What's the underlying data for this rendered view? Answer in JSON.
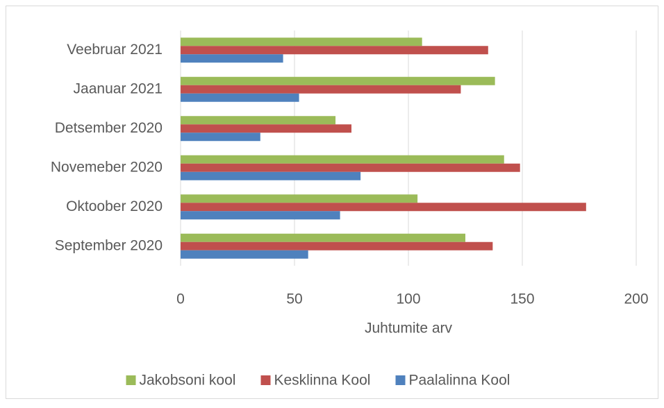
{
  "chart_data": {
    "type": "barh",
    "categories": [
      "September 2020",
      "Oktoober 2020",
      "Novemeber 2020",
      "Detsember 2020",
      "Jaanuar 2021",
      "Veebruar 2021"
    ],
    "series": [
      {
        "name": "Jakobsoni kool",
        "color": "#9bbb59",
        "values": [
          125,
          104,
          142,
          68,
          138,
          106
        ]
      },
      {
        "name": "Kesklinna Kool",
        "color": "#c0504d",
        "values": [
          137,
          178,
          149,
          75,
          123,
          135
        ]
      },
      {
        "name": "Paalalinna Kool",
        "color": "#4f81bd",
        "values": [
          56,
          70,
          79,
          35,
          52,
          45
        ]
      }
    ],
    "xlabel": "Juhtumite arv",
    "xlim": [
      0,
      200
    ],
    "xticks": [
      0,
      50,
      100,
      150,
      200
    ],
    "grid": true,
    "legend": "bottom"
  }
}
